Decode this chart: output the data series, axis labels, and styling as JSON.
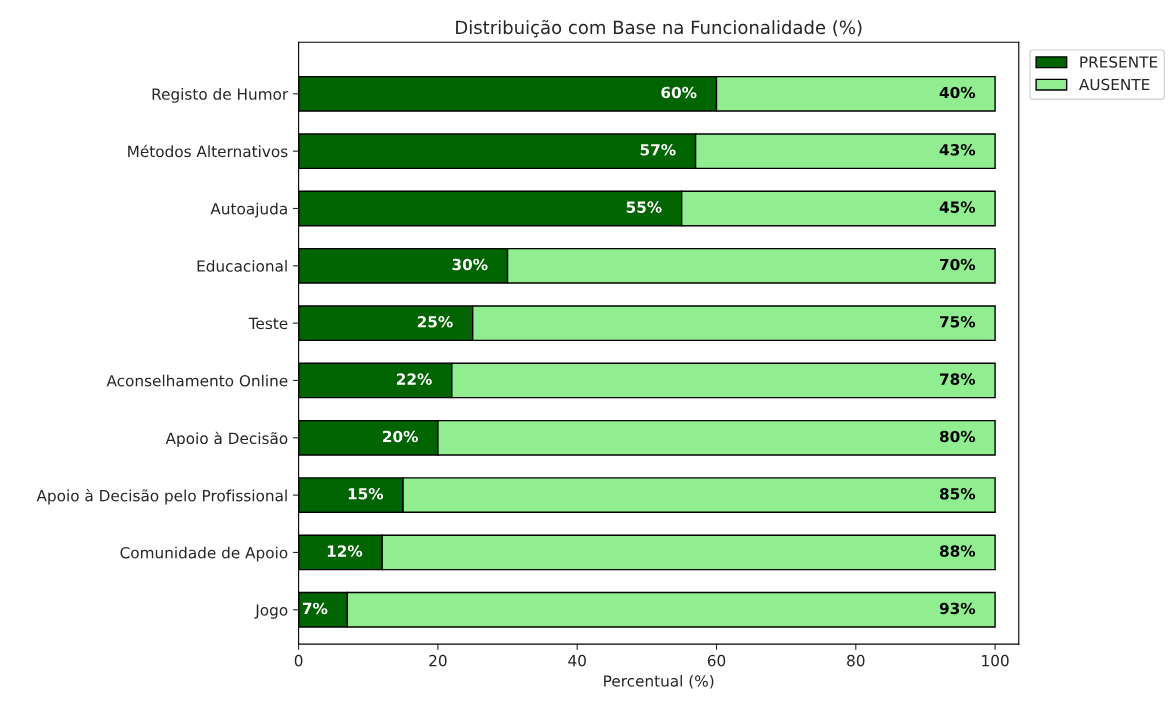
{
  "chart_data": {
    "type": "bar",
    "orientation": "horizontal",
    "stacked": true,
    "title": "Distribuição com Base na Funcionalidade (%)",
    "xlabel": "Percentual (%)",
    "categories": [
      "Registo de Humor",
      "Métodos Alternativos",
      "Autoajuda",
      "Educacional",
      "Teste",
      "Aconselhamento Online",
      "Apoio à Decisão",
      "Apoio à Decisão pelo Profissional",
      "Comunidade de Apoio",
      "Jogo"
    ],
    "series": [
      {
        "name": "PRESENTE",
        "color": "#006400",
        "values": [
          60,
          57,
          55,
          30,
          25,
          22,
          20,
          15,
          12,
          7
        ],
        "value_labels": [
          "60%",
          "57%",
          "55%",
          "30%",
          "25%",
          "22%",
          "20%",
          "15%",
          "12%",
          "7%"
        ]
      },
      {
        "name": "AUSENTE",
        "color": "#90ee90",
        "values": [
          40,
          43,
          45,
          70,
          75,
          78,
          80,
          85,
          88,
          93
        ],
        "value_labels": [
          "40%",
          "43%",
          "45%",
          "70%",
          "75%",
          "78%",
          "80%",
          "85%",
          "88%",
          "93%"
        ]
      }
    ],
    "xlim": [
      0,
      103.4
    ],
    "xticks": [
      0,
      20,
      40,
      60,
      80,
      100
    ],
    "grid": false,
    "legend": "top right"
  }
}
